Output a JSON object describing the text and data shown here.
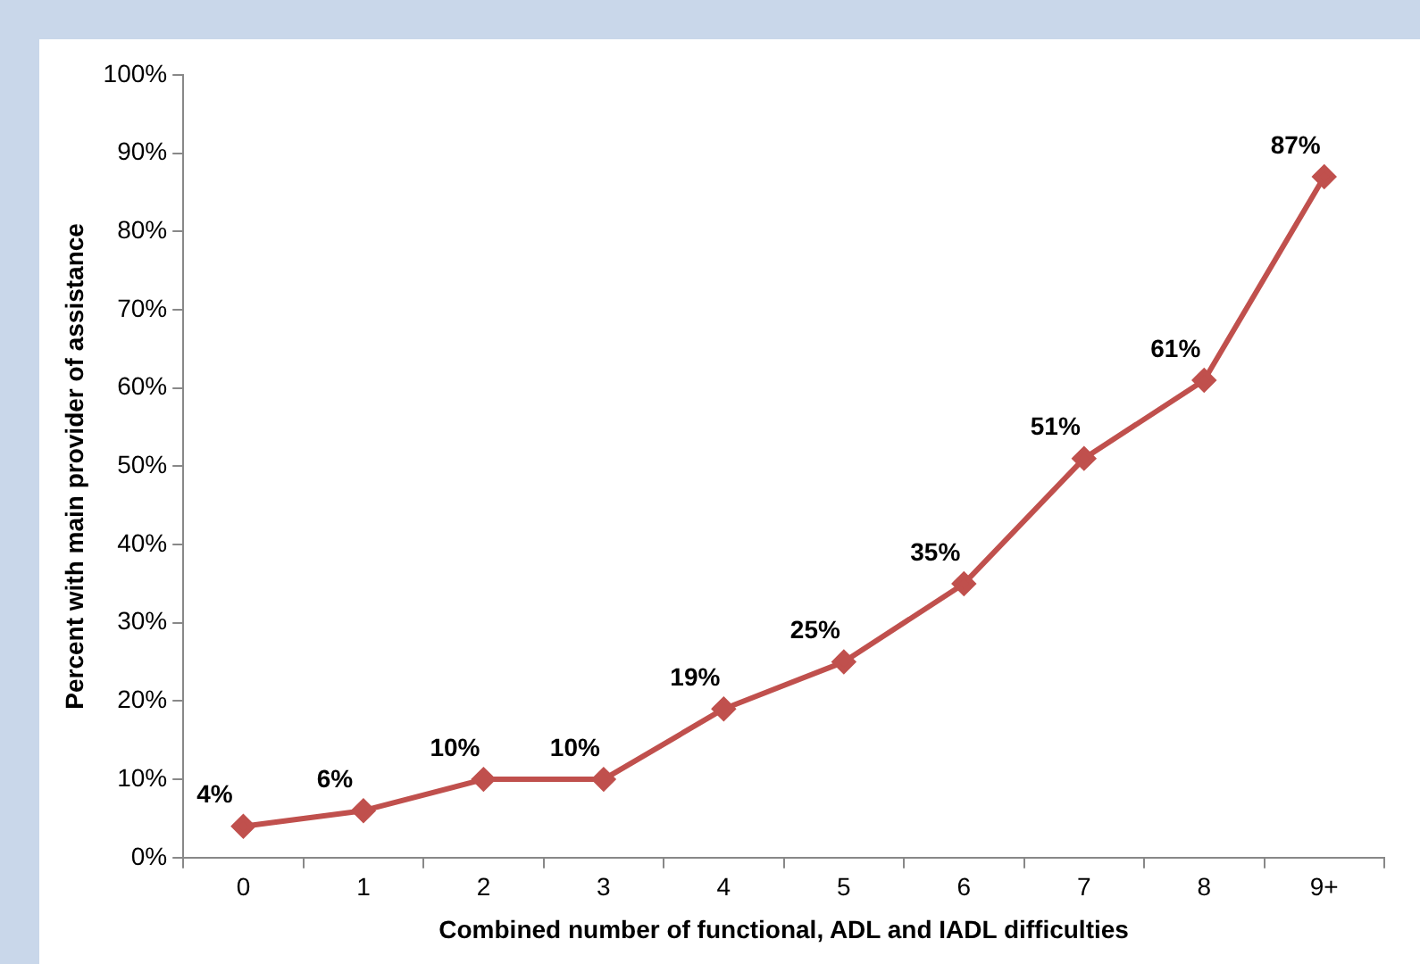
{
  "chart_data": {
    "type": "line",
    "xlabel": "Combined number of functional, ADL and IADL difficulties",
    "ylabel": "Percent with main provider of assistance",
    "categories": [
      "0",
      "1",
      "2",
      "3",
      "4",
      "5",
      "6",
      "7",
      "8",
      "9+"
    ],
    "series": [
      {
        "color": "#c0504d",
        "values": [
          4,
          6,
          10,
          10,
          19,
          25,
          35,
          51,
          61,
          87
        ],
        "value_labels": [
          "4%",
          "6%",
          "10%",
          "10%",
          "19%",
          "25%",
          "35%",
          "51%",
          "61%",
          "87%"
        ]
      }
    ],
    "ylim": [
      0,
      100
    ],
    "yticks": [
      {
        "value": 0,
        "label": "0%"
      },
      {
        "value": 10,
        "label": "10%"
      },
      {
        "value": 20,
        "label": "20%"
      },
      {
        "value": 30,
        "label": "30%"
      },
      {
        "value": 40,
        "label": "40%"
      },
      {
        "value": 50,
        "label": "50%"
      },
      {
        "value": 60,
        "label": "60%"
      },
      {
        "value": 70,
        "label": "70%"
      },
      {
        "value": 80,
        "label": "80%"
      },
      {
        "value": 90,
        "label": "90%"
      },
      {
        "value": 100,
        "label": "100%"
      }
    ],
    "grid": false,
    "legend": false,
    "marker": "diamond",
    "line_style": "solid"
  }
}
